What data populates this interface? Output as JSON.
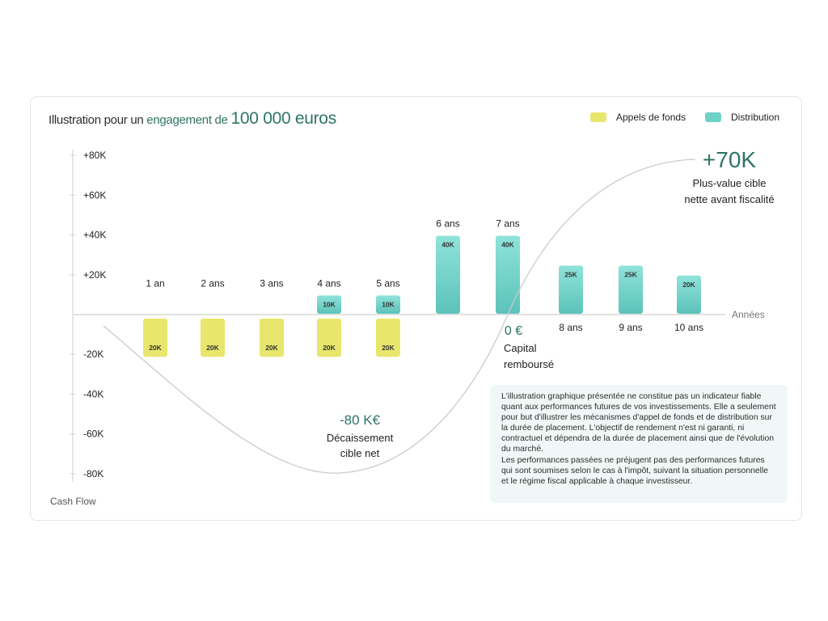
{
  "title": {
    "part1": "Illustration pour un ",
    "part2": "engagement de ",
    "part3": "100 000 euros"
  },
  "legend": [
    {
      "label": "Appels de fonds",
      "color": "#e8e66c"
    },
    {
      "label": "Distribution",
      "color": "#6fd0c7"
    }
  ],
  "chart_data": {
    "type": "bar",
    "categories": [
      "1 an",
      "2 ans",
      "3 ans",
      "4 ans",
      "5 ans",
      "6 ans",
      "7 ans",
      "8 ans",
      "9 ans",
      "10 ans"
    ],
    "series": [
      {
        "name": "Appels de fonds",
        "values": [
          -20,
          -20,
          -20,
          -20,
          -20,
          0,
          0,
          0,
          0,
          0
        ],
        "labels": [
          "20K",
          "20K",
          "20K",
          "20K",
          "20K",
          "",
          "",
          "",
          "",
          ""
        ],
        "color": "#e8e66c"
      },
      {
        "name": "Distribution",
        "values": [
          0,
          0,
          0,
          10,
          10,
          40,
          40,
          25,
          25,
          20
        ],
        "labels": [
          "",
          "",
          "",
          "10K",
          "10K",
          "40K",
          "40K",
          "25K",
          "25K",
          "20K"
        ],
        "color": "#6fd0c7"
      }
    ],
    "cumulative_curve": {
      "start": 0,
      "min": -80,
      "end": 70
    },
    "ylim": [
      -80,
      80
    ],
    "yticks": [
      "+80K",
      "+60K",
      "+40K",
      "+20K",
      "-20K",
      "-40K",
      "-60K",
      "-80K"
    ],
    "ytick_values": [
      80,
      60,
      40,
      20,
      -20,
      -40,
      -60,
      -80
    ],
    "xlabel": "Années",
    "ylabel": "Cash Flow",
    "annotations": {
      "min_value": "-80 K€",
      "min_label1": "Décaissement",
      "min_label2": "cible net",
      "zero_value": "0 €",
      "zero_label1": "Capital",
      "zero_label2": "remboursé",
      "end_value": "+70K",
      "end_label1": "Plus-value cible",
      "end_label2": "nette avant fiscalité"
    }
  },
  "disclaimer": "L'illustration graphique présentée ne constitue pas un indicateur fiable quant aux performances futures de vos investissements. Elle a seulement pour but d'illustrer les mécanismes d'appel de fonds et de distribution sur la durée de placement. L'objectif de rendement n'est ni garanti, ni contractuel et dépendra de la durée de placement ainsi que de l'évolution du marché.\nLes performances passées ne préjugent pas des performances futures qui sont soumises selon le cas à l'impôt, suivant la situation personnelle et le régime fiscal applicable à chaque investisseur."
}
